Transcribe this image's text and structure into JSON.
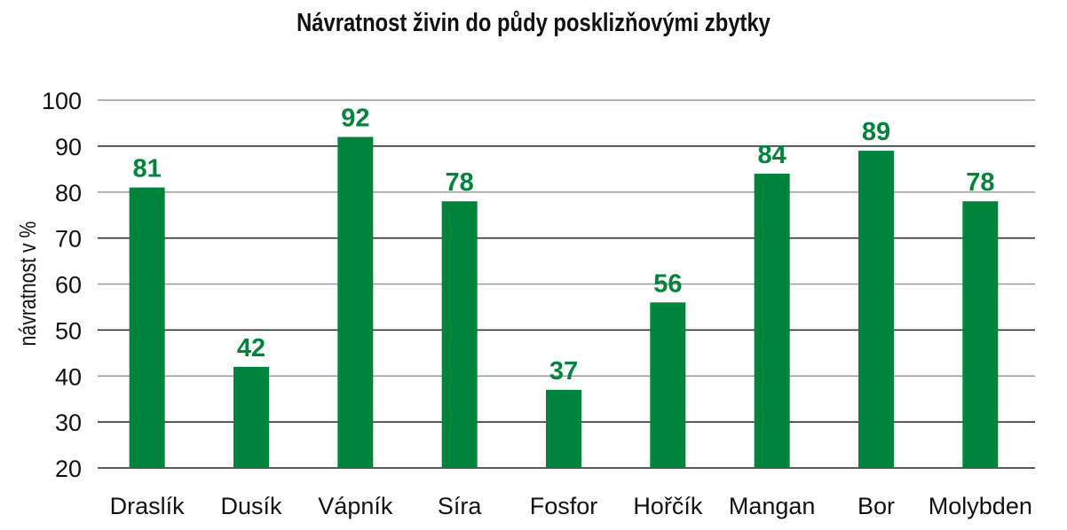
{
  "chart_data": {
    "type": "bar",
    "title": "Návratnost živin do půdy posklizňovými zbytky",
    "ylabel": "návratnost v %",
    "xlabel": "",
    "categories": [
      "Draslík",
      "Dusík",
      "Vápník",
      "Síra",
      "Fosfor",
      "Hořčík",
      "Mangan",
      "Bor",
      "Molybden"
    ],
    "values": [
      81,
      42,
      92,
      78,
      37,
      56,
      84,
      89,
      78
    ],
    "ylim": [
      20,
      100
    ],
    "yticks": [
      20,
      30,
      40,
      50,
      60,
      70,
      80,
      90,
      100
    ],
    "grid": true,
    "legend": "none",
    "colors": {
      "bar": "#00843d",
      "data_label": "#00843d",
      "grid": "#999999",
      "axis": "#222222"
    }
  }
}
